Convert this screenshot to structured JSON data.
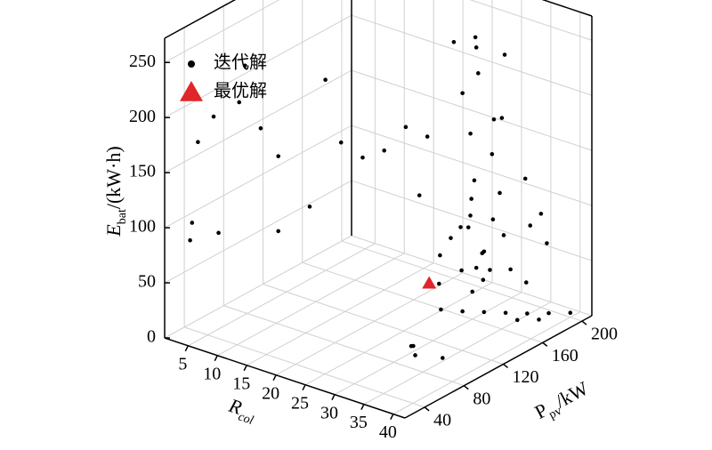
{
  "chart_data": {
    "type": "scatter3d",
    "x_label": {
      "main": "R",
      "sub": "col"
    },
    "y_label": {
      "main": "P",
      "sub": "pv",
      "unit": "/kW"
    },
    "z_label": {
      "main": "E",
      "sub": "bat",
      "unit": "/(kW·h)"
    },
    "xlim": [
      1,
      42
    ],
    "xticks": [
      5,
      10,
      15,
      20,
      25,
      30,
      35,
      40
    ],
    "ylim": [
      20,
      210
    ],
    "yticks": [
      40,
      80,
      120,
      160,
      200
    ],
    "zlim": [
      0,
      272
    ],
    "zticks": [
      0,
      50,
      100,
      150,
      200,
      250
    ],
    "grid": true,
    "legend": "upper left",
    "series": [
      {
        "name": "迭代解",
        "color": "#000000",
        "marker": "circle",
        "x": [
          8,
          6,
          5,
          7,
          9,
          4,
          4,
          6,
          12,
          14,
          12,
          15,
          16,
          18,
          20,
          22,
          24,
          26,
          30,
          31,
          29,
          30,
          32,
          28,
          31,
          30,
          29,
          33,
          30,
          27,
          32,
          28,
          31,
          29,
          33,
          26,
          34,
          30,
          28,
          32,
          30,
          31,
          29,
          28,
          26,
          33,
          30,
          34,
          35,
          34,
          36,
          35,
          28,
          30,
          32,
          34,
          36,
          38,
          40,
          36,
          38,
          30,
          32,
          35,
          33
        ],
        "y": [
          60,
          40,
          30,
          60,
          70,
          30,
          28,
          45,
          70,
          90,
          70,
          100,
          110,
          120,
          130,
          140,
          150,
          130,
          160,
          165,
          155,
          170,
          160,
          150,
          175,
          158,
          165,
          170,
          162,
          145,
          180,
          160,
          150,
          170,
          160,
          150,
          175,
          180,
          170,
          170,
          150,
          160,
          170,
          175,
          165,
          175,
          190,
          190,
          200,
          195,
          200,
          185,
          140,
          150,
          160,
          170,
          180,
          190,
          200,
          170,
          180,
          100,
          90,
          100,
          80
        ],
        "z": [
          240,
          200,
          180,
          205,
          180,
          105,
          90,
          92,
          92,
          108,
          160,
          220,
          160,
          145,
          150,
          170,
          160,
          120,
          25,
          35,
          45,
          55,
          65,
          75,
          85,
          95,
          105,
          115,
          125,
          60,
          70,
          80,
          90,
          40,
          50,
          30,
          45,
          140,
          160,
          180,
          210,
          225,
          240,
          245,
          242,
          238,
          168,
          120,
          85,
          75,
          60,
          30,
          15,
          12,
          10,
          8,
          6,
          5,
          4,
          5,
          4,
          5,
          5,
          3,
          20
        ]
      },
      {
        "name": "最优解",
        "color": "#e0262b",
        "marker": "triangle",
        "x": [
          27
        ],
        "y": [
          134
        ],
        "z": [
          40
        ]
      }
    ]
  }
}
